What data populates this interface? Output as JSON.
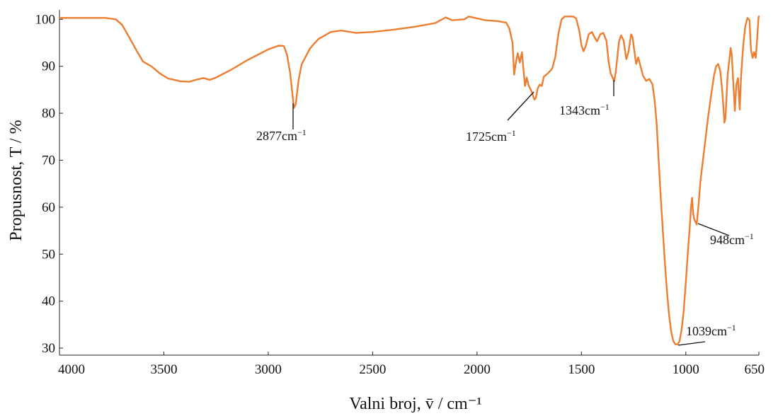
{
  "chart_data": {
    "type": "line",
    "title": "",
    "xlabel": "Valni broj, v̄  /  cm⁻¹",
    "ylabel": "Propusnost, T  /  %",
    "xlim": [
      4000,
      650
    ],
    "ylim": [
      28.5,
      102
    ],
    "x_reversed": true,
    "grid": false,
    "legend": "none",
    "xticks": [
      4000,
      3500,
      3000,
      2500,
      2000,
      1500,
      1000,
      650
    ],
    "yticks": [
      30,
      40,
      50,
      60,
      70,
      80,
      90,
      100
    ],
    "series": [
      {
        "color": "#ED7D31",
        "points": [
          [
            4000,
            100.3
          ],
          [
            3780,
            100.3
          ],
          [
            3730,
            100.0
          ],
          [
            3700,
            98.8
          ],
          [
            3670,
            96.5
          ],
          [
            3630,
            93.3
          ],
          [
            3600,
            91.0
          ],
          [
            3560,
            90.0
          ],
          [
            3520,
            88.5
          ],
          [
            3480,
            87.4
          ],
          [
            3420,
            86.8
          ],
          [
            3380,
            86.7
          ],
          [
            3340,
            87.2
          ],
          [
            3310,
            87.5
          ],
          [
            3280,
            87.1
          ],
          [
            3250,
            87.6
          ],
          [
            3180,
            89.2
          ],
          [
            3100,
            91.3
          ],
          [
            3000,
            93.6
          ],
          [
            2950,
            94.4
          ],
          [
            2925,
            94.3
          ],
          [
            2910,
            92.4
          ],
          [
            2895,
            88.5
          ],
          [
            2885,
            84.5
          ],
          [
            2877,
            81.1
          ],
          [
            2868,
            82.0
          ],
          [
            2855,
            87.0
          ],
          [
            2840,
            90.4
          ],
          [
            2800,
            93.8
          ],
          [
            2760,
            95.8
          ],
          [
            2700,
            97.3
          ],
          [
            2650,
            97.6
          ],
          [
            2580,
            97.1
          ],
          [
            2500,
            97.3
          ],
          [
            2400,
            97.8
          ],
          [
            2300,
            98.4
          ],
          [
            2200,
            99.2
          ],
          [
            2150,
            100.4
          ],
          [
            2120,
            99.8
          ],
          [
            2060,
            100.0
          ],
          [
            2040,
            100.6
          ],
          [
            2000,
            100.2
          ],
          [
            1960,
            99.8
          ],
          [
            1900,
            99.6
          ],
          [
            1860,
            99.3
          ],
          [
            1845,
            98.0
          ],
          [
            1830,
            95.0
          ],
          [
            1822,
            88.2
          ],
          [
            1815,
            90.5
          ],
          [
            1805,
            92.8
          ],
          [
            1795,
            90.8
          ],
          [
            1785,
            93.0
          ],
          [
            1778,
            89.5
          ],
          [
            1770,
            85.8
          ],
          [
            1762,
            87.6
          ],
          [
            1752,
            85.8
          ],
          [
            1740,
            84.8
          ],
          [
            1730,
            83.5
          ],
          [
            1725,
            82.9
          ],
          [
            1718,
            83.3
          ],
          [
            1710,
            85.2
          ],
          [
            1700,
            86.1
          ],
          [
            1690,
            85.8
          ],
          [
            1680,
            87.8
          ],
          [
            1660,
            88.5
          ],
          [
            1640,
            89.5
          ],
          [
            1625,
            92.0
          ],
          [
            1610,
            97.0
          ],
          [
            1595,
            100.0
          ],
          [
            1580,
            100.6
          ],
          [
            1540,
            100.6
          ],
          [
            1525,
            100.2
          ],
          [
            1510,
            97.5
          ],
          [
            1500,
            94.5
          ],
          [
            1490,
            93.2
          ],
          [
            1480,
            94.2
          ],
          [
            1465,
            96.8
          ],
          [
            1450,
            97.3
          ],
          [
            1440,
            96.4
          ],
          [
            1425,
            95.3
          ],
          [
            1410,
            96.8
          ],
          [
            1395,
            97.1
          ],
          [
            1380,
            95.4
          ],
          [
            1370,
            91.0
          ],
          [
            1360,
            88.5
          ],
          [
            1350,
            87.5
          ],
          [
            1343,
            86.8
          ],
          [
            1335,
            89.0
          ],
          [
            1320,
            95.3
          ],
          [
            1310,
            96.6
          ],
          [
            1298,
            95.5
          ],
          [
            1285,
            91.5
          ],
          [
            1275,
            93.0
          ],
          [
            1262,
            96.8
          ],
          [
            1255,
            96.2
          ],
          [
            1248,
            93.8
          ],
          [
            1238,
            90.5
          ],
          [
            1228,
            91.9
          ],
          [
            1218,
            90.2
          ],
          [
            1205,
            88.0
          ],
          [
            1190,
            86.9
          ],
          [
            1175,
            87.3
          ],
          [
            1160,
            86.2
          ],
          [
            1150,
            83.0
          ],
          [
            1140,
            78.0
          ],
          [
            1130,
            70.0
          ],
          [
            1120,
            62.0
          ],
          [
            1110,
            55.0
          ],
          [
            1100,
            48.0
          ],
          [
            1090,
            42.0
          ],
          [
            1080,
            37.0
          ],
          [
            1070,
            33.5
          ],
          [
            1060,
            31.5
          ],
          [
            1050,
            30.8
          ],
          [
            1039,
            30.8
          ],
          [
            1030,
            31.5
          ],
          [
            1020,
            34.0
          ],
          [
            1010,
            38.0
          ],
          [
            1000,
            44.0
          ],
          [
            990,
            50.5
          ],
          [
            980,
            56.5
          ],
          [
            975,
            60.0
          ],
          [
            970,
            62.0
          ],
          [
            965,
            58.8
          ],
          [
            960,
            57.5
          ],
          [
            955,
            57.0
          ],
          [
            948,
            56.3
          ],
          [
            940,
            60.0
          ],
          [
            930,
            65.5
          ],
          [
            915,
            71.0
          ],
          [
            895,
            78.5
          ],
          [
            880,
            83.5
          ],
          [
            865,
            88.0
          ],
          [
            855,
            90.0
          ],
          [
            845,
            90.5
          ],
          [
            835,
            89.0
          ],
          [
            825,
            84.5
          ],
          [
            815,
            78.0
          ],
          [
            810,
            79.0
          ],
          [
            800,
            88.0
          ],
          [
            790,
            92.0
          ],
          [
            785,
            93.9
          ],
          [
            780,
            92.5
          ],
          [
            772,
            86.0
          ],
          [
            765,
            80.5
          ],
          [
            758,
            86.0
          ],
          [
            750,
            87.5
          ],
          [
            742,
            80.8
          ],
          [
            735,
            88.0
          ],
          [
            725,
            94.5
          ],
          [
            715,
            98.5
          ],
          [
            705,
            100.3
          ],
          [
            695,
            99.8
          ],
          [
            688,
            93.5
          ],
          [
            680,
            91.8
          ],
          [
            673,
            93.0
          ],
          [
            665,
            91.8
          ],
          [
            658,
            96.0
          ],
          [
            652,
            100.2
          ],
          [
            650,
            100.6
          ]
        ]
      }
    ],
    "annotations": [
      {
        "value": "2877",
        "unit": "cm",
        "sup": "−1"
      },
      {
        "value": "1725",
        "unit": "cm",
        "sup": "−1"
      },
      {
        "value": "1343",
        "unit": "cm",
        "sup": "−1"
      },
      {
        "value": "948",
        "unit": "cm",
        "sup": "−1"
      },
      {
        "value": "1039",
        "unit": "cm",
        "sup": "−1"
      }
    ]
  }
}
